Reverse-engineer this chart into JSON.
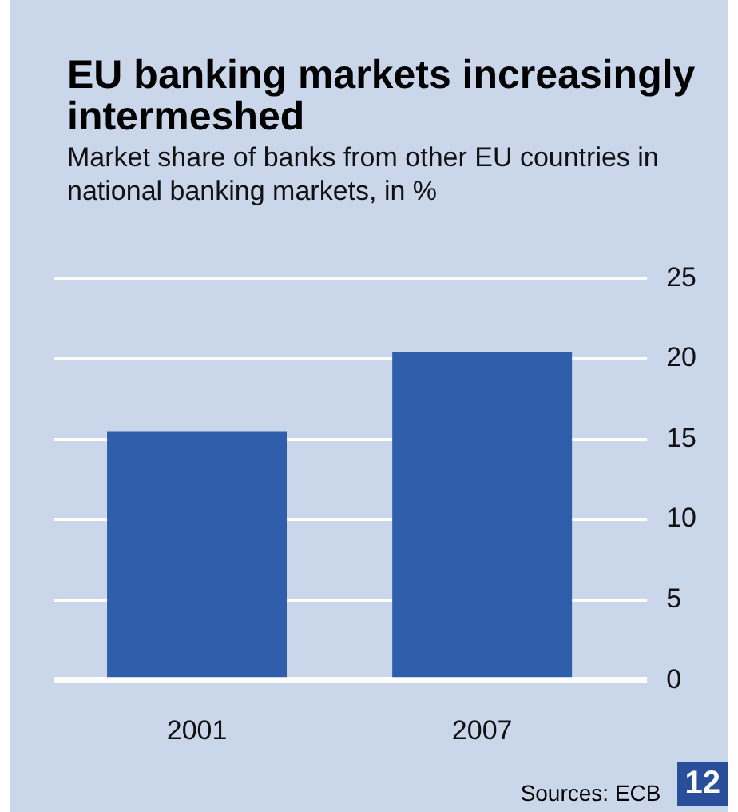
{
  "chart_data": {
    "type": "bar",
    "title": "EU banking markets increasingly intermeshed",
    "subtitle": "Market share of banks from other EU countries in national banking markets, in %",
    "categories": [
      "2001",
      "2007"
    ],
    "values": [
      15.5,
      20.4
    ],
    "color": "#2f5faa",
    "ylim": [
      0,
      25
    ],
    "yticks": [
      0,
      5,
      10,
      15,
      20,
      25
    ],
    "grid": true,
    "annotations": [
      "Sources: ECB",
      "12"
    ]
  }
}
